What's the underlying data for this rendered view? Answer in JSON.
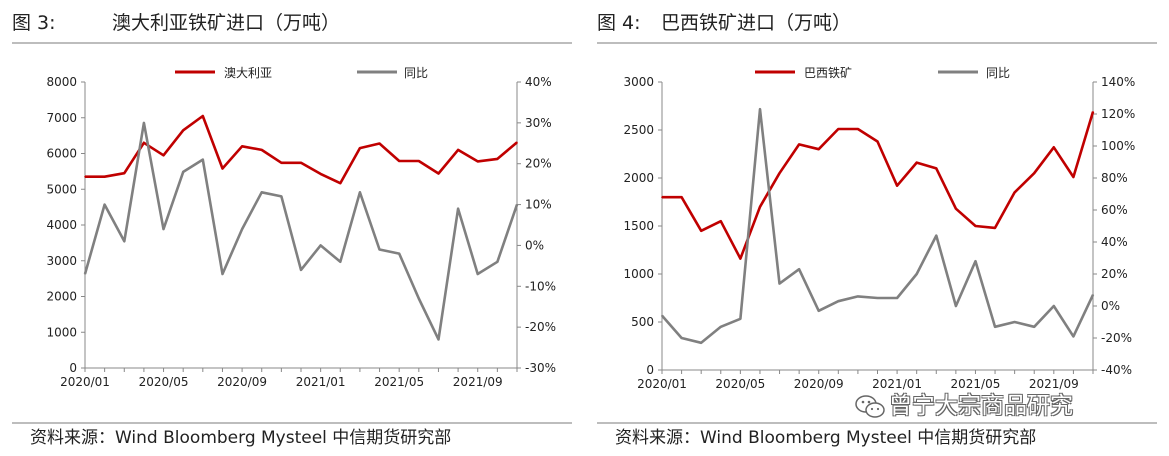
{
  "charts": [
    {
      "figure_label": "图 3:",
      "title": "澳大利亚铁矿进口（万吨）",
      "source": "资料来源：Wind Bloomberg Mysteel 中信期货研究部"
    },
    {
      "figure_label": "图 4:",
      "title": "巴西铁矿进口（万吨）",
      "source": "资料来源：Wind Bloomberg Mysteel 中信期货研究部"
    }
  ],
  "watermark": {
    "text": "曾宁大宗商品研究",
    "icon": "wechat-icon"
  },
  "chart_data": [
    {
      "type": "line",
      "title": "澳大利亚铁矿进口（万吨）",
      "x": [
        "2020/01",
        "2020/02",
        "2020/03",
        "2020/04",
        "2020/05",
        "2020/06",
        "2020/07",
        "2020/08",
        "2020/09",
        "2020/10",
        "2020/11",
        "2020/12",
        "2021/01",
        "2021/02",
        "2021/03",
        "2021/04",
        "2021/05",
        "2021/06",
        "2021/07",
        "2021/08",
        "2021/09",
        "2021/10",
        "2021/11"
      ],
      "x_tick_labels": [
        "2020/01",
        "2020/05",
        "2020/09",
        "2021/01",
        "2021/05",
        "2021/09"
      ],
      "x_tick_every": 4,
      "y_left": {
        "min": 0,
        "max": 8000,
        "step": 1000,
        "ticks": [
          "0",
          "1000",
          "2000",
          "3000",
          "4000",
          "5000",
          "6000",
          "7000",
          "8000"
        ]
      },
      "y_right": {
        "min": -30,
        "max": 40,
        "step": 10,
        "ticks": [
          "-30%",
          "-20%",
          "-10%",
          "0%",
          "10%",
          "20%",
          "30%",
          "40%"
        ]
      },
      "legend_position": "top",
      "series": [
        {
          "name": "澳大利亚",
          "axis": "left",
          "color": "#c00000",
          "values": [
            5350,
            5350,
            5450,
            6300,
            5950,
            6650,
            7050,
            5580,
            6200,
            6100,
            5740,
            5740,
            5430,
            5170,
            6150,
            6280,
            5790,
            5790,
            5440,
            6100,
            5780,
            5850,
            6310
          ]
        },
        {
          "name": "同比",
          "axis": "right",
          "color": "#808080",
          "values": [
            -7,
            10,
            1,
            30,
            4,
            18,
            21,
            -7,
            4,
            13,
            12,
            -6,
            0,
            -4,
            13,
            -1,
            -2,
            -13,
            -23,
            9,
            -7,
            -4,
            10
          ]
        }
      ]
    },
    {
      "type": "line",
      "title": "巴西铁矿进口（万吨）",
      "x": [
        "2020/01",
        "2020/02",
        "2020/03",
        "2020/04",
        "2020/05",
        "2020/06",
        "2020/07",
        "2020/08",
        "2020/09",
        "2020/10",
        "2020/11",
        "2020/12",
        "2021/01",
        "2021/02",
        "2021/03",
        "2021/04",
        "2021/05",
        "2021/06",
        "2021/07",
        "2021/08",
        "2021/09",
        "2021/10",
        "2021/11"
      ],
      "x_tick_labels": [
        "2020/01",
        "2020/05",
        "2020/09",
        "2021/01",
        "2021/05",
        "2021/09"
      ],
      "x_tick_every": 4,
      "y_left": {
        "min": 0,
        "max": 3000,
        "step": 500,
        "ticks": [
          "0",
          "500",
          "1000",
          "1500",
          "2000",
          "2500",
          "3000"
        ]
      },
      "y_right": {
        "min": -40,
        "max": 140,
        "step": 20,
        "ticks": [
          "-40%",
          "-20%",
          "0%",
          "20%",
          "40%",
          "60%",
          "80%",
          "100%",
          "120%",
          "140%"
        ]
      },
      "legend_position": "top",
      "series": [
        {
          "name": "巴西铁矿",
          "axis": "left",
          "color": "#c00000",
          "values": [
            1800,
            1800,
            1450,
            1550,
            1160,
            1700,
            2050,
            2350,
            2300,
            2510,
            2510,
            2380,
            1920,
            2160,
            2100,
            1680,
            1500,
            1480,
            1850,
            2050,
            2320,
            2010,
            2690
          ]
        },
        {
          "name": "同比",
          "axis": "right",
          "color": "#808080",
          "values": [
            -6,
            -20,
            -23,
            -13,
            -8,
            123,
            14,
            23,
            -3,
            3,
            6,
            5,
            5,
            20,
            44,
            0,
            28,
            -13,
            -10,
            -13,
            0,
            -19,
            7
          ]
        }
      ]
    }
  ]
}
